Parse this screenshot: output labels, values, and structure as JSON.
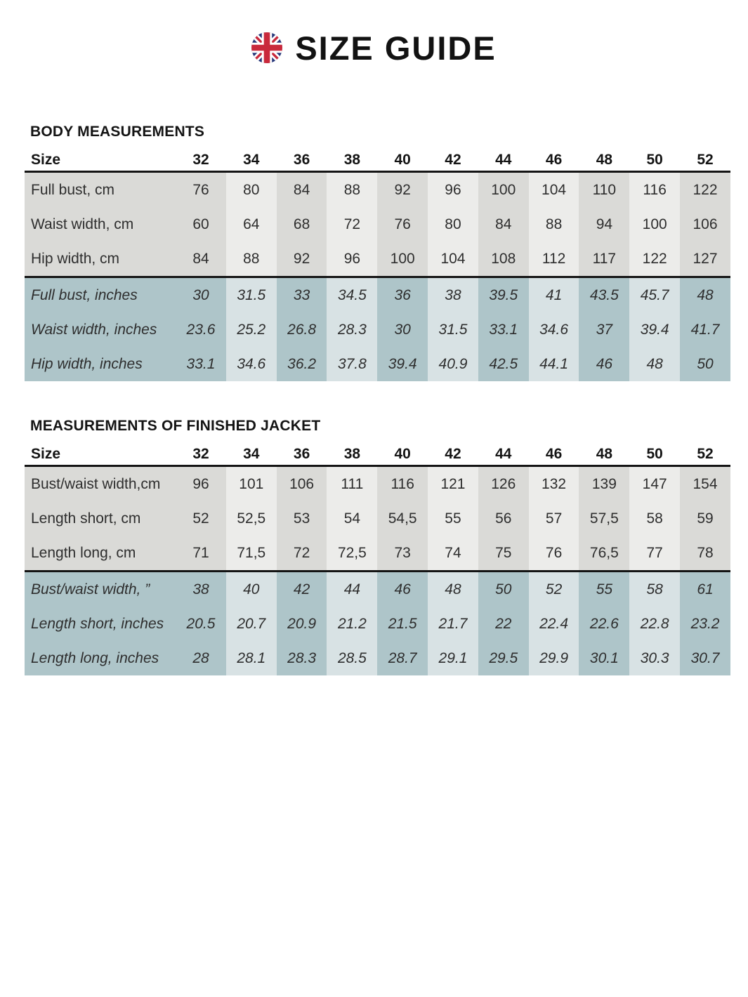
{
  "header": {
    "title": "SIZE GUIDE",
    "flag_icon": "uk-flag-icon"
  },
  "colors": {
    "heading_text": "#141414",
    "cell_text": "#2e2e2e",
    "rule_line": "#141414",
    "cm_dark": "#dadad7",
    "cm_light": "#ececea",
    "inch_dark": "#aec5c9",
    "inch_light": "#d8e2e4",
    "flag_blue": "#27387a",
    "flag_red": "#c9293c"
  },
  "tables": [
    {
      "heading": "BODY MEASUREMENTS",
      "corner_label": "Size",
      "sizes": [
        "32",
        "34",
        "36",
        "38",
        "40",
        "42",
        "44",
        "46",
        "48",
        "50",
        "52"
      ],
      "cm_rows": [
        {
          "label": "Full bust, cm",
          "values": [
            "76",
            "80",
            "84",
            "88",
            "92",
            "96",
            "100",
            "104",
            "110",
            "116",
            "122"
          ]
        },
        {
          "label": "Waist width, cm",
          "values": [
            "60",
            "64",
            "68",
            "72",
            "76",
            "80",
            "84",
            "88",
            "94",
            "100",
            "106"
          ]
        },
        {
          "label": "Hip width, cm",
          "values": [
            "84",
            "88",
            "92",
            "96",
            "100",
            "104",
            "108",
            "112",
            "117",
            "122",
            "127"
          ]
        }
      ],
      "inch_rows": [
        {
          "label": "Full bust, inches",
          "values": [
            "30",
            "31.5",
            "33",
            "34.5",
            "36",
            "38",
            "39.5",
            "41",
            "43.5",
            "45.7",
            "48"
          ]
        },
        {
          "label": "Waist width, inches",
          "values": [
            "23.6",
            "25.2",
            "26.8",
            "28.3",
            "30",
            "31.5",
            "33.1",
            "34.6",
            "37",
            "39.4",
            "41.7"
          ]
        },
        {
          "label": "Hip width, inches",
          "values": [
            "33.1",
            "34.6",
            "36.2",
            "37.8",
            "39.4",
            "40.9",
            "42.5",
            "44.1",
            "46",
            "48",
            "50"
          ]
        }
      ]
    },
    {
      "heading": "MEASUREMENTS OF FINISHED JACKET",
      "corner_label": "Size",
      "sizes": [
        "32",
        "34",
        "36",
        "38",
        "40",
        "42",
        "44",
        "46",
        "48",
        "50",
        "52"
      ],
      "cm_rows": [
        {
          "label": "Bust/waist width,cm",
          "values": [
            "96",
            "101",
            "106",
            "111",
            "116",
            "121",
            "126",
            "132",
            "139",
            "147",
            "154"
          ]
        },
        {
          "label": "Length short, cm",
          "values": [
            "52",
            "52,5",
            "53",
            "54",
            "54,5",
            "55",
            "56",
            "57",
            "57,5",
            "58",
            "59"
          ]
        },
        {
          "label": "Length long, cm",
          "values": [
            "71",
            "71,5",
            "72",
            "72,5",
            "73",
            "74",
            "75",
            "76",
            "76,5",
            "77",
            "78"
          ]
        }
      ],
      "inch_rows": [
        {
          "label": "Bust/waist width, ”",
          "values": [
            "38",
            "40",
            "42",
            "44",
            "46",
            "48",
            "50",
            "52",
            "55",
            "58",
            "61"
          ]
        },
        {
          "label": "Length short, inches",
          "values": [
            "20.5",
            "20.7",
            "20.9",
            "21.2",
            "21.5",
            "21.7",
            "22",
            "22.4",
            "22.6",
            "22.8",
            "23.2"
          ]
        },
        {
          "label": "Length long, inches",
          "values": [
            "28",
            "28.1",
            "28.3",
            "28.5",
            "28.7",
            "29.1",
            "29.5",
            "29.9",
            "30.1",
            "30.3",
            "30.7"
          ]
        }
      ]
    }
  ]
}
